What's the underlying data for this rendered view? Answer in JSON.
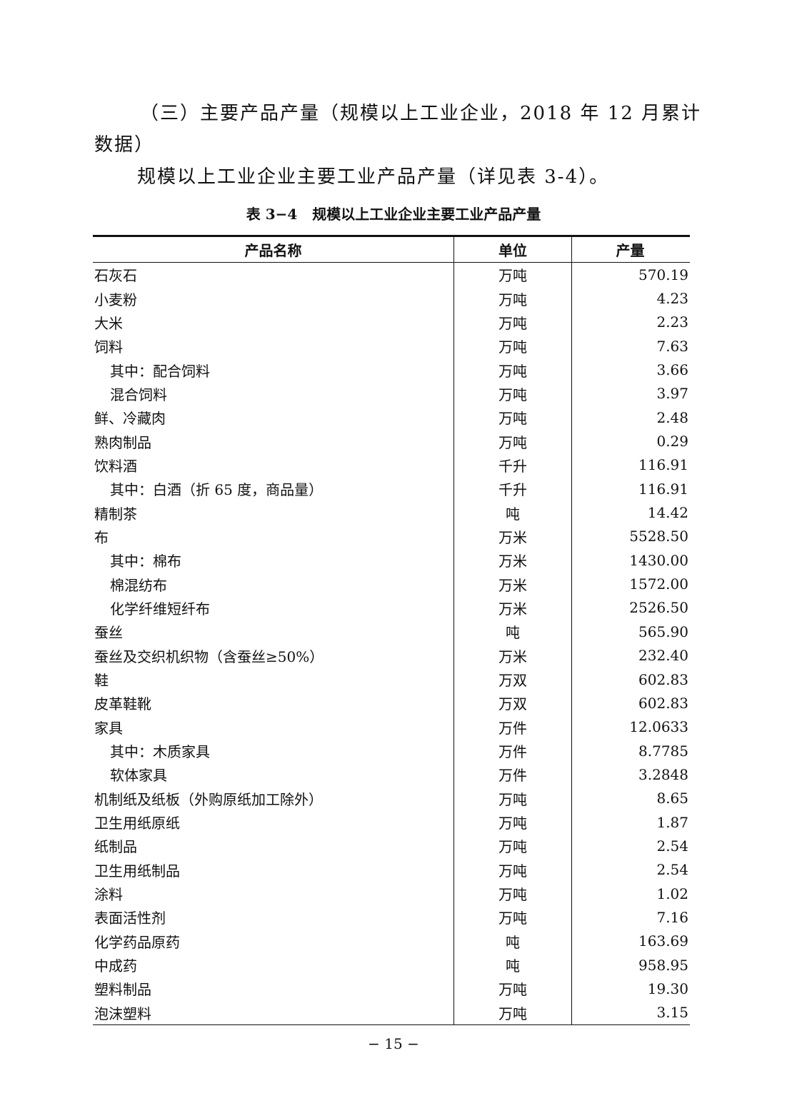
{
  "heading": {
    "line1": "（三）主要产品产量（规模以上工业企业，2018 年 12 月累计",
    "line2": "数据）"
  },
  "paragraph": "规模以上工业企业主要工业产品产量（详见表 3-4）。",
  "table": {
    "caption": "表 3−4   规模以上工业企业主要工业产品产量",
    "headers": [
      "产品名称",
      "单位",
      "产量"
    ],
    "rows": [
      {
        "name": "石灰石",
        "unit": "万吨",
        "value": "570.19",
        "indent": false
      },
      {
        "name": "小麦粉",
        "unit": "万吨",
        "value": "4.23",
        "indent": false
      },
      {
        "name": "大米",
        "unit": "万吨",
        "value": "2.23",
        "indent": false
      },
      {
        "name": "饲料",
        "unit": "万吨",
        "value": "7.63",
        "indent": false
      },
      {
        "name": "其中：配合饲料",
        "unit": "万吨",
        "value": "3.66",
        "indent": true
      },
      {
        "name": "混合饲料",
        "unit": "万吨",
        "value": "3.97",
        "indent": true
      },
      {
        "name": "鲜、冷藏肉",
        "unit": "万吨",
        "value": "2.48",
        "indent": false
      },
      {
        "name": "熟肉制品",
        "unit": "万吨",
        "value": "0.29",
        "indent": false
      },
      {
        "name": "饮料酒",
        "unit": "千升",
        "value": "116.91",
        "indent": false
      },
      {
        "name": "其中：白酒（折 65 度，商品量）",
        "unit": "千升",
        "value": "116.91",
        "indent": true
      },
      {
        "name": "精制茶",
        "unit": "吨",
        "value": "14.42",
        "indent": false
      },
      {
        "name": "布",
        "unit": "万米",
        "value": "5528.50",
        "indent": false
      },
      {
        "name": "其中：棉布",
        "unit": "万米",
        "value": "1430.00",
        "indent": true
      },
      {
        "name": "棉混纺布",
        "unit": "万米",
        "value": "1572.00",
        "indent": true
      },
      {
        "name": "化学纤维短纤布",
        "unit": "万米",
        "value": "2526.50",
        "indent": true
      },
      {
        "name": "蚕丝",
        "unit": "吨",
        "value": "565.90",
        "indent": false
      },
      {
        "name": "蚕丝及交织机织物（含蚕丝≥50%）",
        "unit": "万米",
        "value": "232.40",
        "indent": false
      },
      {
        "name": "鞋",
        "unit": "万双",
        "value": "602.83",
        "indent": false
      },
      {
        "name": "皮革鞋靴",
        "unit": "万双",
        "value": "602.83",
        "indent": false
      },
      {
        "name": "家具",
        "unit": "万件",
        "value": "12.0633",
        "indent": false
      },
      {
        "name": "其中：木质家具",
        "unit": "万件",
        "value": "8.7785",
        "indent": true
      },
      {
        "name": "软体家具",
        "unit": "万件",
        "value": "3.2848",
        "indent": true
      },
      {
        "name": "机制纸及纸板（外购原纸加工除外）",
        "unit": "万吨",
        "value": "8.65",
        "indent": false
      },
      {
        "name": "卫生用纸原纸",
        "unit": "万吨",
        "value": "1.87",
        "indent": false
      },
      {
        "name": "纸制品",
        "unit": "万吨",
        "value": "2.54",
        "indent": false
      },
      {
        "name": "卫生用纸制品",
        "unit": "万吨",
        "value": "2.54",
        "indent": false
      },
      {
        "name": "涂料",
        "unit": "万吨",
        "value": "1.02",
        "indent": false
      },
      {
        "name": "表面活性剂",
        "unit": "万吨",
        "value": "7.16",
        "indent": false
      },
      {
        "name": "化学药品原药",
        "unit": "吨",
        "value": "163.69",
        "indent": false
      },
      {
        "name": "中成药",
        "unit": "吨",
        "value": "958.95",
        "indent": false
      },
      {
        "name": "塑料制品",
        "unit": "万吨",
        "value": "19.30",
        "indent": false
      },
      {
        "name": "泡沫塑料",
        "unit": "万吨",
        "value": "3.15",
        "indent": false
      }
    ]
  },
  "page_number": "− 15 −"
}
